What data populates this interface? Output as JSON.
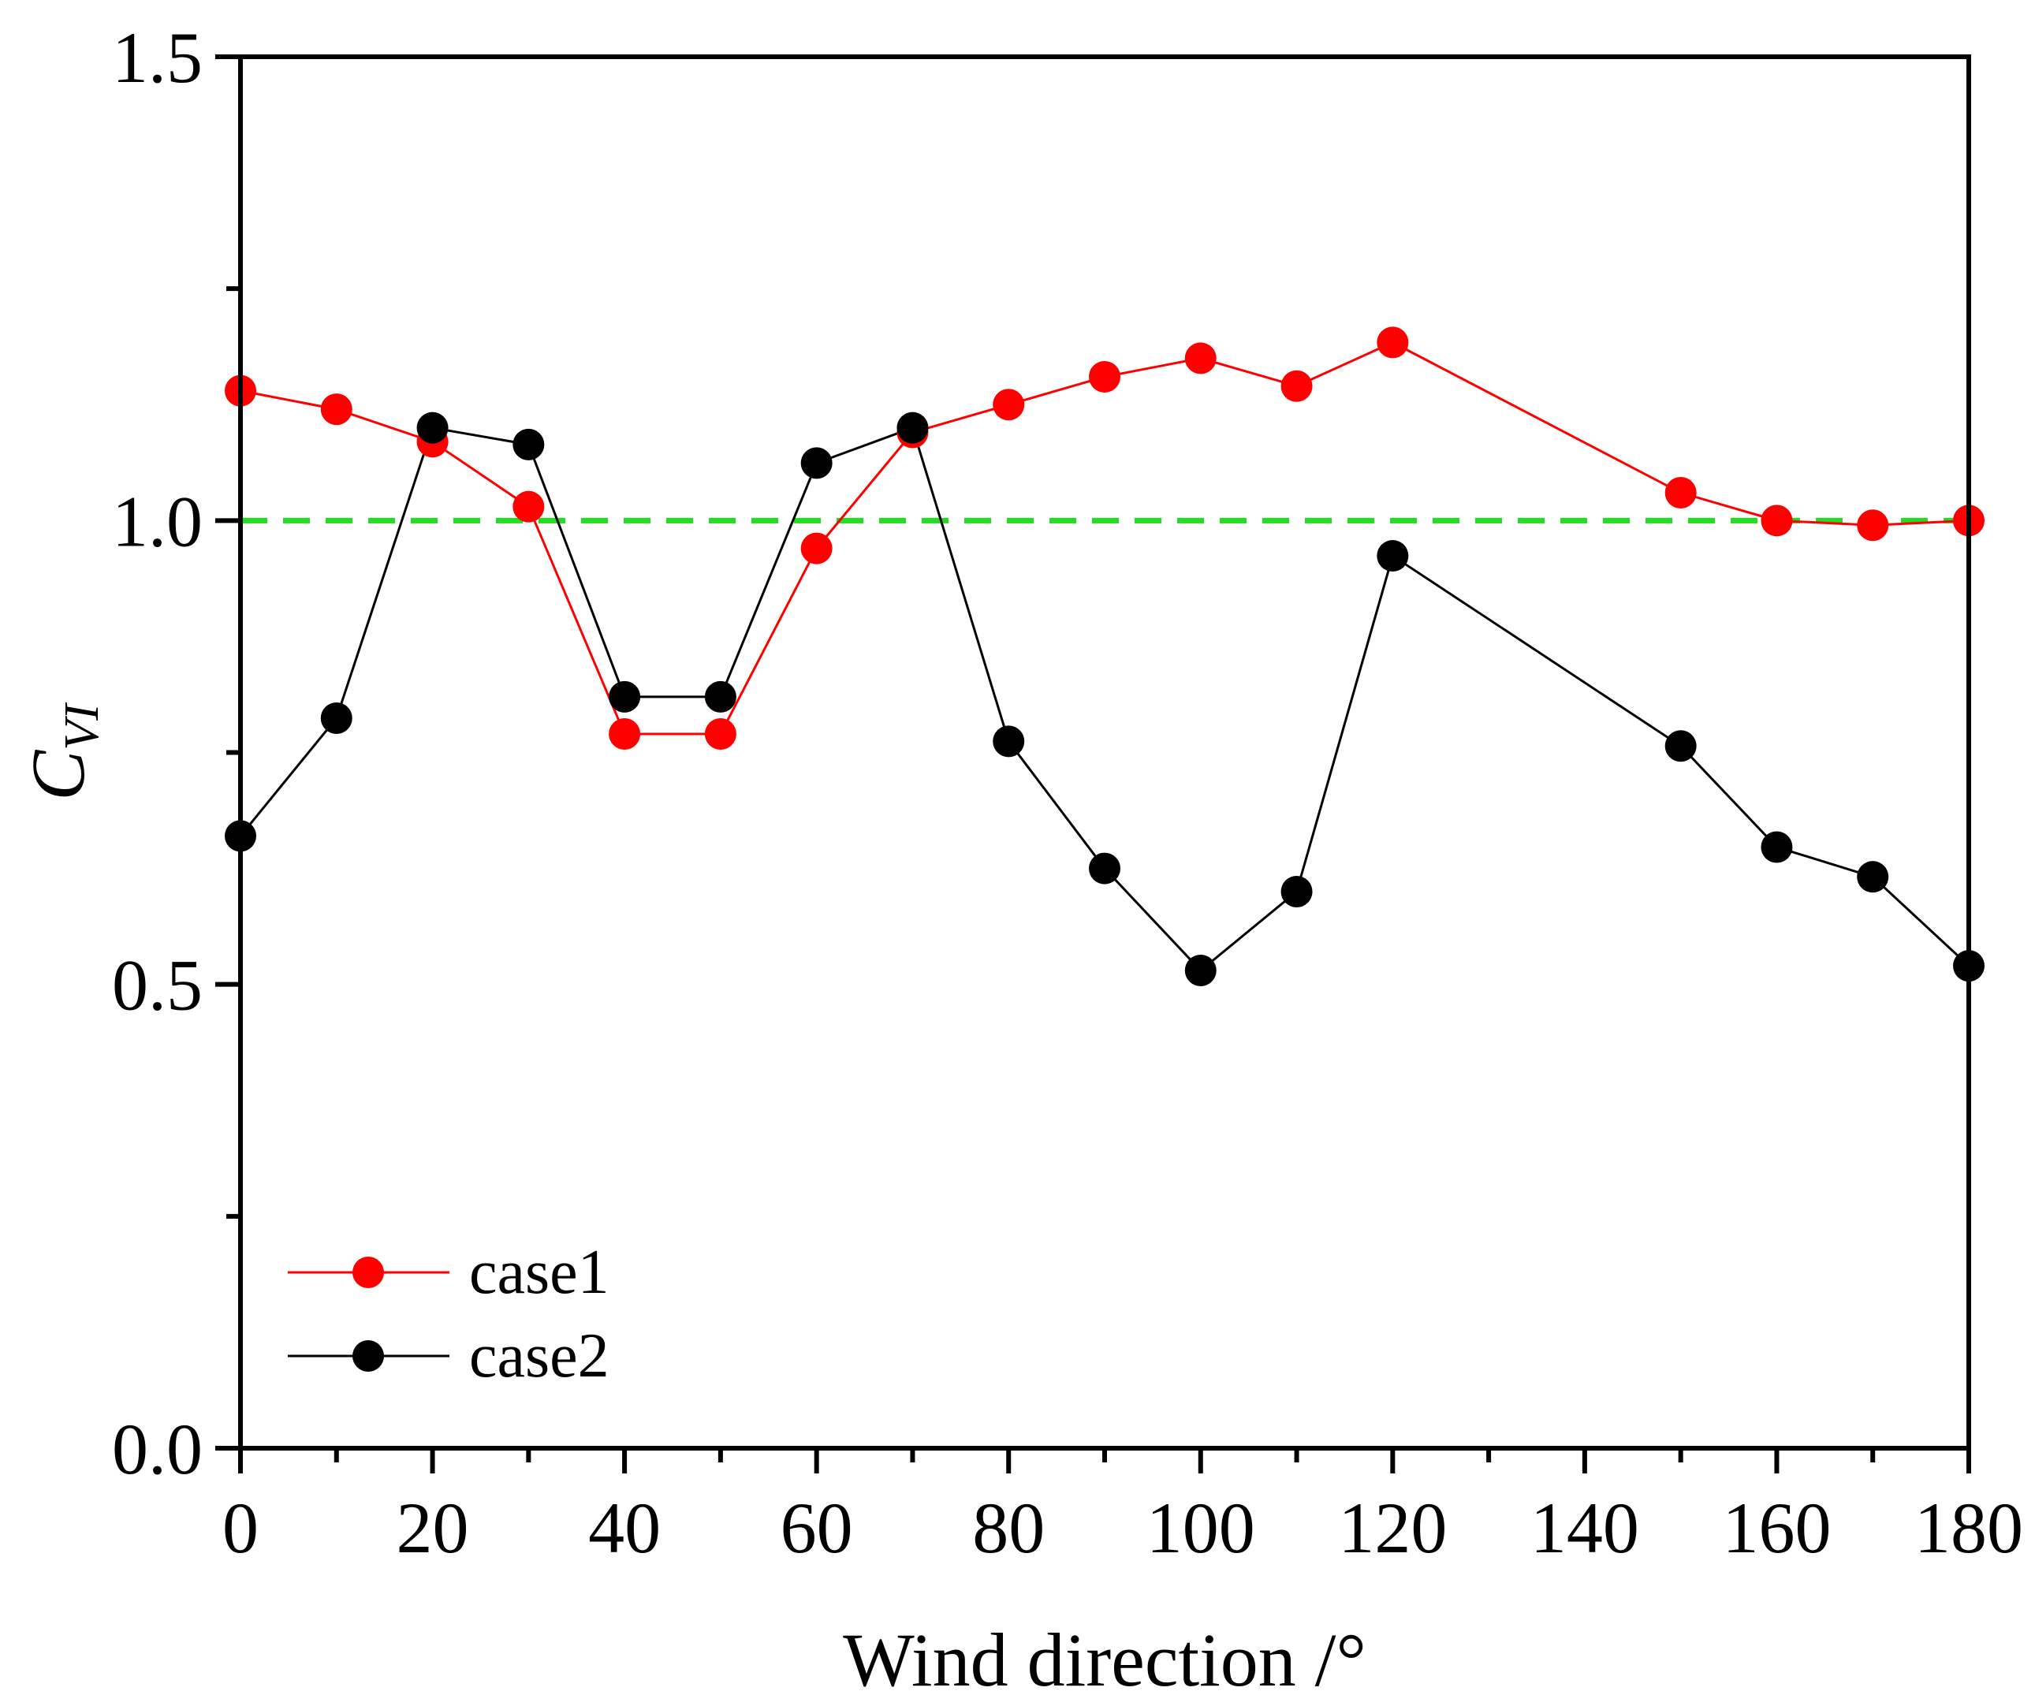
{
  "chart_data": {
    "type": "line",
    "title": "",
    "xlabel": "Wind direction /°",
    "ylabel": {
      "main": "C",
      "subscript": "VI"
    },
    "xlim": [
      0,
      180
    ],
    "ylim": [
      0.0,
      1.5
    ],
    "xticks": [
      0,
      20,
      40,
      60,
      80,
      100,
      120,
      140,
      160,
      180
    ],
    "xtick_labels": [
      "0",
      "20",
      "40",
      "60",
      "80",
      "100",
      "120",
      "140",
      "160",
      "180"
    ],
    "xminor": [
      10,
      30,
      50,
      70,
      90,
      110,
      130,
      150,
      170
    ],
    "yticks": [
      0.0,
      0.5,
      1.0,
      1.5
    ],
    "ytick_labels": [
      "0.0",
      "0.5",
      "1.0",
      "1.5"
    ],
    "yminor": [
      0.25,
      0.75,
      1.25
    ],
    "grid": false,
    "legend_position": "bottom-left",
    "reference_line": {
      "y": 1.0,
      "color": "#22DD22",
      "style": "dashed"
    },
    "series": [
      {
        "name": "case1",
        "color": "#FF0000",
        "x": [
          0,
          10,
          20,
          30,
          40,
          50,
          60,
          70,
          80,
          90,
          100,
          110,
          120,
          150,
          160,
          170,
          180
        ],
        "values": [
          1.14,
          1.12,
          1.085,
          1.015,
          0.77,
          0.77,
          0.97,
          1.095,
          1.125,
          1.155,
          1.175,
          1.145,
          1.192,
          1.03,
          1.0,
          0.995,
          1.0
        ]
      },
      {
        "name": "case2",
        "color": "#000000",
        "x": [
          0,
          10,
          20,
          30,
          40,
          50,
          60,
          70,
          80,
          90,
          100,
          110,
          120,
          150,
          160,
          170,
          180
        ],
        "values": [
          0.66,
          0.787,
          1.1,
          1.082,
          0.81,
          0.81,
          1.062,
          1.1,
          0.762,
          0.625,
          0.515,
          0.6,
          0.962,
          0.757,
          0.648,
          0.616,
          0.52
        ]
      }
    ]
  }
}
